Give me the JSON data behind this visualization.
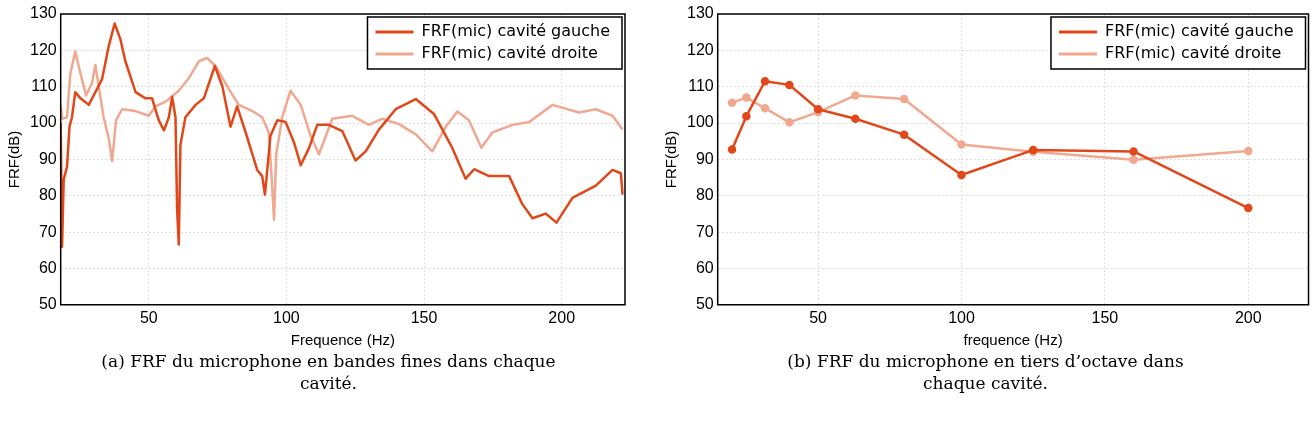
{
  "chart_data": [
    {
      "type": "line",
      "title": "(a) FRF du microphone en bandes fines dans chaque cavité.",
      "xlabel": "Frequence (Hz)",
      "ylabel": "FRF(dB)",
      "xlim": [
        18,
        223
      ],
      "xticks": [
        50,
        100,
        150,
        200
      ],
      "ylim": [
        50,
        130
      ],
      "yticks": [
        50,
        60,
        70,
        80,
        90,
        100,
        110,
        120,
        130
      ],
      "grid": true,
      "legend": "top right",
      "marker": "none",
      "line_style": "solid",
      "series": [
        {
          "name": "FRF(mic) cavité gauche",
          "color": "#e0481a",
          "x": [
            18,
            18.5,
            19.1,
            20.3,
            21.2,
            22.1,
            23.3,
            25.2,
            28.2,
            30.6,
            33,
            35.5,
            37.6,
            39.7,
            41.5,
            45.2,
            48.8,
            51.2,
            53.6,
            55.5,
            57.3,
            58.5,
            59.7,
            60.3,
            60.9,
            61.5,
            63.3,
            67,
            70,
            74,
            76.7,
            79.7,
            82.1,
            85.2,
            89.4,
            91.2,
            92.2,
            94.2,
            96.7,
            99.7,
            102.7,
            105.2,
            108.2,
            111.2,
            115.4,
            120.3,
            125.1,
            128.8,
            133.6,
            139.7,
            147,
            153.6,
            160.3,
            165.1,
            168.2,
            173.6,
            180.9,
            185.7,
            189.4,
            194.2,
            198.1,
            203.9,
            212.4,
            218.5,
            221.5,
            222.1
          ],
          "values": [
            100,
            66,
            84.5,
            88,
            99,
            101.6,
            108.5,
            106.8,
            105,
            108.5,
            112,
            121.3,
            127.4,
            123,
            117,
            108.5,
            106.8,
            106.8,
            100.8,
            98,
            101.6,
            107.2,
            101.6,
            76,
            66.6,
            94,
            101.6,
            105,
            106.8,
            115.7,
            110.2,
            99,
            104.6,
            97.4,
            87.1,
            85.4,
            80.3,
            96.5,
            100.8,
            100.3,
            94.8,
            88.4,
            93.1,
            99.5,
            99.5,
            97.8,
            89.7,
            92.2,
            98.2,
            103.8,
            106.6,
            102.5,
            93.1,
            84.7,
            87.3,
            85.4,
            85.4,
            77.7,
            73.8,
            75.1,
            72.6,
            79.4,
            82.8,
            87.1,
            86.2,
            80.3
          ]
        },
        {
          "name": "FRF(mic) cavité droite",
          "color": "#f0a890",
          "x": [
            18,
            18.5,
            20.3,
            21.5,
            23.3,
            25.2,
            27.2,
            29.4,
            30.6,
            31.8,
            33.6,
            35.5,
            36.7,
            38.1,
            40.3,
            45.2,
            50,
            52.4,
            56.1,
            60.9,
            64.5,
            68.2,
            71.2,
            74.2,
            79.1,
            82.7,
            87.6,
            91.2,
            93.6,
            94.8,
            95.5,
            96.3,
            98.5,
            101.5,
            105.2,
            108.8,
            111.8,
            116.7,
            123.9,
            130,
            134.8,
            140.9,
            147,
            153,
            157.9,
            162.1,
            166.3,
            170.8,
            174.8,
            182.1,
            188.2,
            196.7,
            206.3,
            212.4,
            218.5,
            222.1
          ],
          "values": [
            105,
            101.2,
            101.6,
            113.6,
            119.7,
            113.6,
            107.6,
            111,
            116,
            110.2,
            101.6,
            95.6,
            89.5,
            100.8,
            103.8,
            103.3,
            102,
            104.6,
            105.9,
            108.9,
            112.3,
            117,
            117.9,
            115.7,
            109.3,
            105,
            103.3,
            101.6,
            97.4,
            82.8,
            73.4,
            91.4,
            101.6,
            108.9,
            105,
            96.5,
            91.4,
            101.2,
            102,
            99.5,
            101.2,
            99.7,
            96.9,
            92.2,
            99,
            103.2,
            100.8,
            93.2,
            97.4,
            99.5,
            100.3,
            105,
            102.9,
            103.8,
            102,
            98.2
          ]
        }
      ]
    },
    {
      "type": "line",
      "title": "(b) FRF du microphone en tiers d’octave dans chaque cavité.",
      "xlabel": "frequence (Hz)",
      "ylabel": "FRF(dB)",
      "xlim": [
        15,
        221
      ],
      "xticks": [
        50,
        100,
        150,
        200
      ],
      "ylim": [
        50,
        130
      ],
      "yticks": [
        50,
        60,
        70,
        80,
        90,
        100,
        110,
        120,
        130
      ],
      "grid": true,
      "legend": "top right",
      "marker": "circle",
      "line_style": "solid",
      "series": [
        {
          "name": "FRF(mic) cavité gauche",
          "color": "#e0481a",
          "x": [
            20,
            25,
            31.5,
            40,
            50,
            63,
            80,
            100,
            125,
            160,
            200
          ],
          "values": [
            92.7,
            101.9,
            111.5,
            110.5,
            103.8,
            101.2,
            96.8,
            85.7,
            92.6,
            92.2,
            76.6
          ]
        },
        {
          "name": "FRF(mic) cavité droite",
          "color": "#f0a890",
          "x": [
            20,
            25,
            31.5,
            40,
            50,
            63,
            80,
            100,
            125,
            160,
            200
          ],
          "values": [
            105.6,
            107,
            104.1,
            100.2,
            103,
            107.6,
            106.6,
            94.1,
            92.1,
            89.9,
            92.3
          ]
        }
      ]
    }
  ]
}
